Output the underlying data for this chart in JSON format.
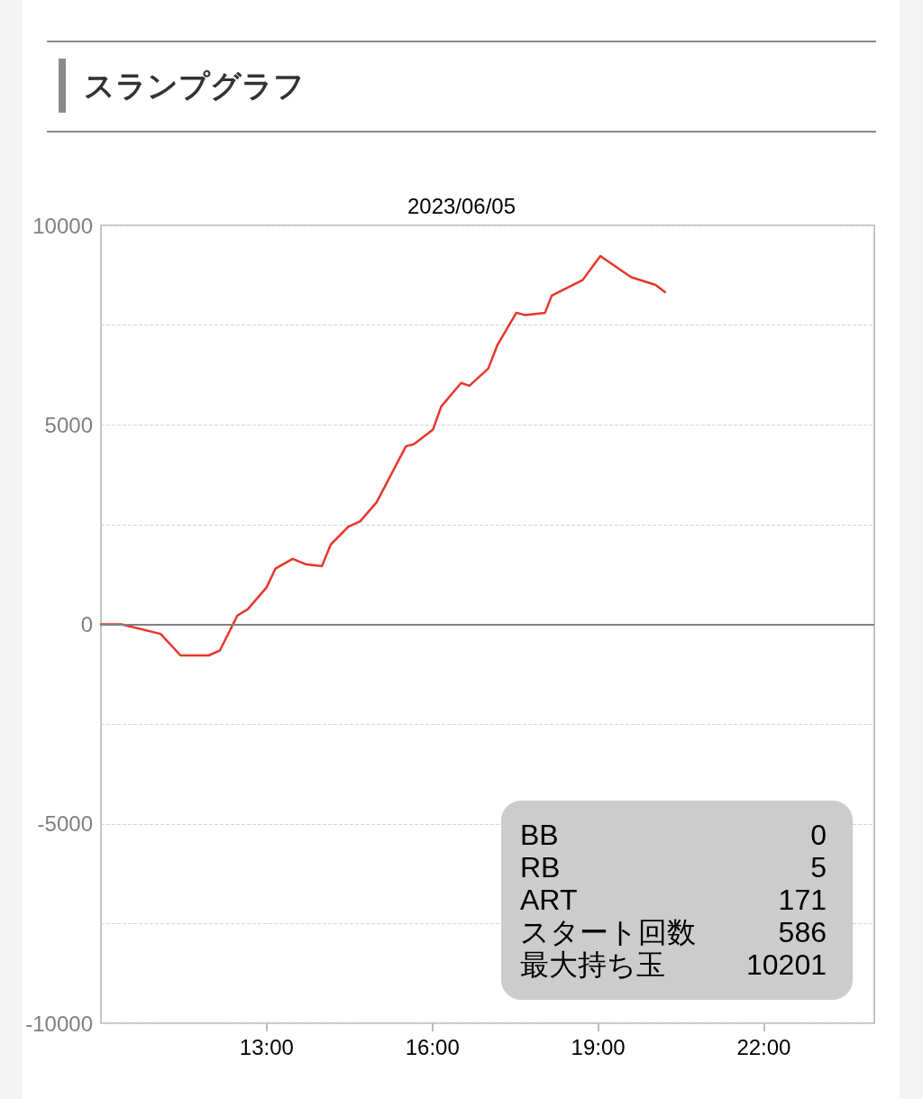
{
  "chart_data": {
    "type": "line",
    "title": "スランプグラフ",
    "subtitle": "2023/06/05",
    "x": [
      10.0,
      10.37,
      11.08,
      11.44,
      11.95,
      12.15,
      12.47,
      12.66,
      13.0,
      13.16,
      13.47,
      13.7,
      14.0,
      14.16,
      14.48,
      14.69,
      14.99,
      15.52,
      15.67,
      16.01,
      16.16,
      16.52,
      16.67,
      17.01,
      17.18,
      17.52,
      17.68,
      18.04,
      18.16,
      18.72,
      19.04,
      19.6,
      20.04,
      20.21
    ],
    "series": [
      {
        "color": "#e8352b",
        "values": [
          0,
          0,
          -240,
          -780,
          -780,
          -660,
          220,
          380,
          930,
          1400,
          1640,
          1510,
          1460,
          2000,
          2450,
          2580,
          3060,
          4460,
          4520,
          4880,
          5460,
          6050,
          5980,
          6410,
          7010,
          7810,
          7750,
          7810,
          8240,
          8630,
          9230,
          8700,
          8510,
          8330
        ]
      }
    ],
    "xlim": [
      10,
      24
    ],
    "xticks": [
      {
        "value": 13,
        "label": "13:00"
      },
      {
        "value": 16,
        "label": "16:00"
      },
      {
        "value": 19,
        "label": "19:00"
      },
      {
        "value": 22,
        "label": "22:00"
      }
    ],
    "ylim": [
      -10000,
      10000
    ],
    "yticks": [
      10000,
      {
        "value": 7500,
        "label": null
      },
      5000,
      {
        "value": 2500,
        "label": null
      },
      0,
      {
        "value": -2500,
        "label": null
      },
      -5000,
      {
        "value": -7500,
        "label": null
      },
      -10000
    ],
    "grid": "y",
    "ref_lines": [
      {
        "axis": "y",
        "value": 0,
        "color": "#808080",
        "line_style": "solid"
      }
    ],
    "annotations": [
      "BB",
      "0",
      "RB",
      "5",
      "ART",
      "171",
      "スタート回数",
      "586",
      "最大持ち玉",
      "10201"
    ]
  }
}
